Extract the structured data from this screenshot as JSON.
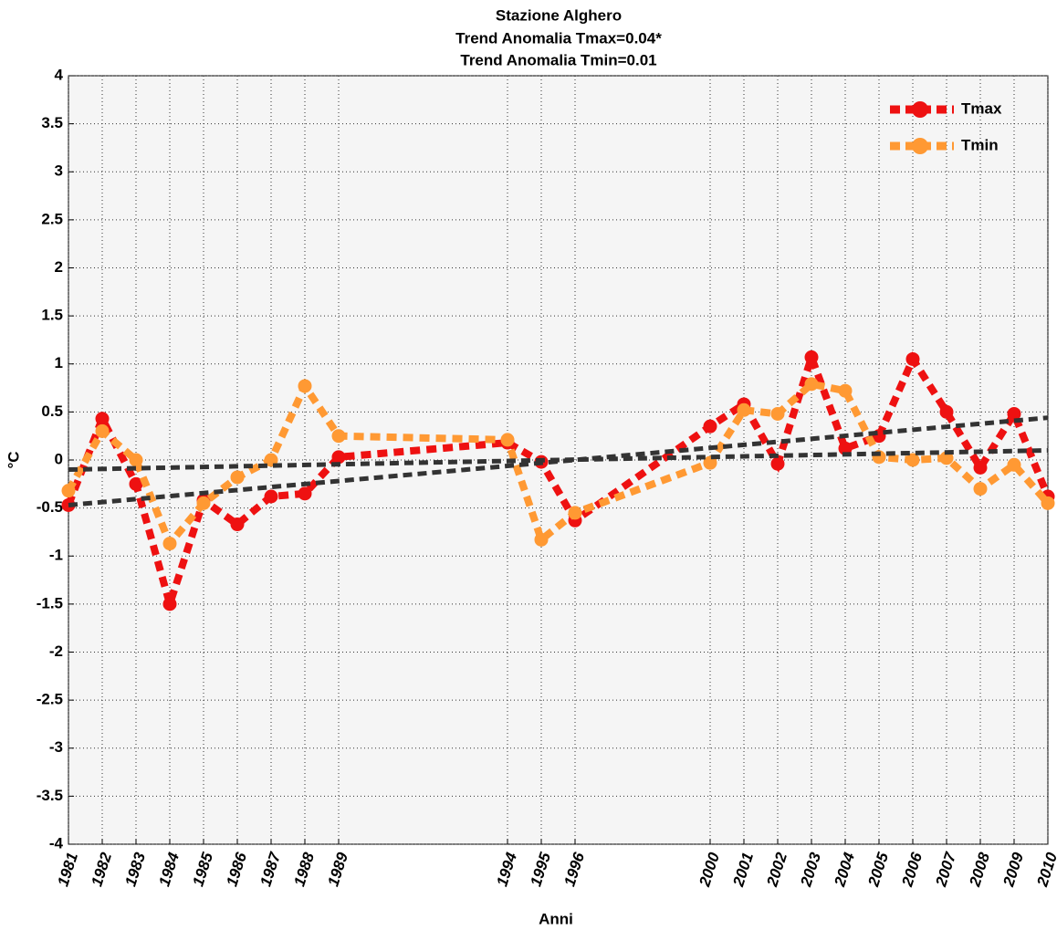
{
  "chart_data": {
    "type": "line",
    "title": [
      "Stazione Alghero",
      "Trend Anomalia Tmax=0.04*",
      "Trend Anomalia Tmin=0.01"
    ],
    "xlabel": "Anni",
    "ylabel": "°C",
    "x": [
      1981,
      1982,
      1983,
      1984,
      1985,
      1986,
      1987,
      1988,
      1989,
      1994,
      1995,
      1996,
      2000,
      2001,
      2002,
      2003,
      2004,
      2005,
      2006,
      2007,
      2008,
      2009,
      2010
    ],
    "series": [
      {
        "name": "Tmax",
        "color": "#ee1111",
        "values": [
          -0.47,
          0.43,
          -0.25,
          -1.5,
          -0.42,
          -0.67,
          -0.38,
          -0.35,
          0.03,
          0.18,
          -0.02,
          -0.63,
          0.35,
          0.58,
          -0.04,
          1.07,
          0.12,
          0.25,
          1.05,
          0.5,
          -0.08,
          0.48,
          -0.38
        ]
      },
      {
        "name": "Tmin",
        "color": "#ff9933",
        "values": [
          -0.32,
          0.3,
          0.0,
          -0.87,
          -0.45,
          -0.18,
          0.0,
          0.77,
          0.25,
          0.21,
          -0.83,
          -0.55,
          -0.03,
          0.52,
          0.48,
          0.79,
          0.72,
          0.03,
          0.0,
          0.02,
          -0.3,
          -0.05,
          -0.45
        ]
      }
    ],
    "trends": [
      {
        "color": "#333333",
        "x": [
          1981,
          2010
        ],
        "values": [
          -0.47,
          0.44
        ]
      },
      {
        "color": "#333333",
        "x": [
          1981,
          2010
        ],
        "values": [
          -0.1,
          0.1
        ]
      }
    ],
    "xlim": [
      1981,
      2010
    ],
    "ylim": [
      -4,
      4
    ],
    "xticks": [
      1981,
      1982,
      1983,
      1984,
      1985,
      1986,
      1987,
      1988,
      1989,
      1994,
      1995,
      1996,
      2000,
      2001,
      2002,
      2003,
      2004,
      2005,
      2006,
      2007,
      2008,
      2009,
      2010
    ],
    "yticks": [
      -4,
      -3.5,
      -3,
      -2.5,
      -2,
      -1.5,
      -1,
      -0.5,
      0,
      0.5,
      1,
      1.5,
      2,
      2.5,
      3,
      3.5,
      4
    ],
    "grid": true,
    "legend": "upper-right"
  }
}
